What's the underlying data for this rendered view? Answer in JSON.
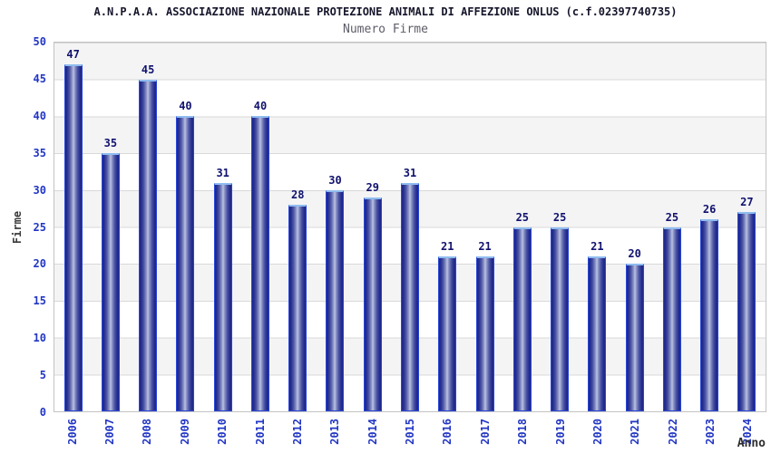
{
  "header": {
    "title": "A.N.P.A.A. ASSOCIAZIONE NAZIONALE PROTEZIONE ANIMALI DI AFFEZIONE ONLUS (c.f.02397740735)",
    "subtitle": "Numero Firme"
  },
  "chart_data": {
    "type": "bar",
    "title": "Numero Firme",
    "xlabel": "Anno",
    "ylabel": "Firme",
    "categories": [
      "2006",
      "2007",
      "2008",
      "2009",
      "2010",
      "2011",
      "2012",
      "2013",
      "2014",
      "2015",
      "2016",
      "2017",
      "2018",
      "2019",
      "2020",
      "2021",
      "2022",
      "2023",
      "2024"
    ],
    "values": [
      47,
      35,
      45,
      40,
      31,
      40,
      28,
      30,
      29,
      31,
      21,
      21,
      25,
      25,
      21,
      20,
      25,
      26,
      27
    ],
    "ylim": [
      0,
      50
    ],
    "ytick_step": 5,
    "yticks": [
      0,
      5,
      10,
      15,
      20,
      25,
      30,
      35,
      40,
      45,
      50
    ],
    "grid": "alternating horizontal gray/white bands with thin gridlines every 5 units",
    "legend": "none",
    "bar_labels_shown": true,
    "colors": {
      "bar_edge": "#2946d8",
      "bar_dark": "#1e2687",
      "bar_light_center": "#bdc3e3",
      "bar_top_highlight": "#8fbcf0",
      "axis_tick_label": "#2236c4",
      "bar_value_label": "#11126e",
      "axis_title": "#3a3a3a",
      "title": "#16162c",
      "subtitle": "#5d5d68",
      "band_gray": "#f4f4f5",
      "grid_line": "#d9d9d9",
      "plot_border": "#c3c3c3",
      "background": "#ffffff"
    }
  }
}
